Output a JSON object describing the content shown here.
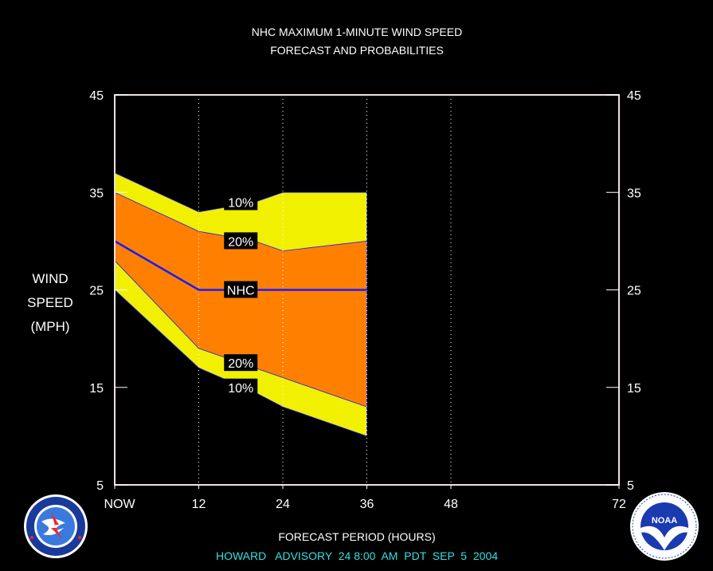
{
  "chart_data": {
    "type": "area",
    "title_lines": [
      "NHC MAXIMUM 1-MINUTE WIND SPEED",
      "FORECAST AND PROBABILITIES"
    ],
    "ylabel_lines": [
      "WIND",
      "SPEED",
      "(MPH)"
    ],
    "xlabel": "FORECAST PERIOD (HOURS)",
    "advisory": "HOWARD   ADVISORY  24 8:00  AM  PDT  SEP  5  2004",
    "ylim": [
      5,
      45
    ],
    "y_ticks": [
      5,
      15,
      25,
      35,
      45
    ],
    "xlim": [
      0,
      72
    ],
    "x_ticks": [
      {
        "value": 0,
        "label": "NOW"
      },
      {
        "value": 12,
        "label": "12"
      },
      {
        "value": 24,
        "label": "24"
      },
      {
        "value": 36,
        "label": "36"
      },
      {
        "value": 48,
        "label": "48"
      },
      {
        "value": 72,
        "label": "72"
      }
    ],
    "grid": {
      "x_dotted": [
        12,
        24,
        36,
        48
      ]
    },
    "x": [
      0,
      12,
      20,
      24,
      36
    ],
    "series": [
      {
        "name": "10%",
        "upper": [
          37,
          33,
          34,
          35,
          35
        ],
        "lower": [
          25,
          17,
          14.5,
          13,
          10
        ],
        "color": "#f0f000"
      },
      {
        "name": "20%",
        "upper": [
          35,
          31,
          30,
          29,
          30
        ],
        "lower": [
          28,
          19,
          17,
          16,
          13
        ],
        "color": "#ff8000"
      },
      {
        "name": "NHC",
        "values": [
          30,
          25,
          25,
          25,
          25
        ],
        "color": "#1a1aff"
      }
    ],
    "labels": [
      {
        "text": "10%",
        "x": 18,
        "y": 34
      },
      {
        "text": "20%",
        "x": 18,
        "y": 30
      },
      {
        "text": "NHC",
        "x": 18,
        "y": 25
      },
      {
        "text": "20%",
        "x": 18,
        "y": 17.5
      },
      {
        "text": "10%",
        "x": 18,
        "y": 15
      }
    ],
    "colors": {
      "background": "#000000",
      "frame": "#f0e0e0",
      "text": "#ffffff",
      "advisory": "#33e0e0"
    }
  },
  "logos": {
    "left": {
      "icon": "nws-logo-icon",
      "text": "NATIONAL WEATHER SERVICE"
    },
    "right": {
      "icon": "noaa-logo-icon",
      "text": "NOAA"
    }
  }
}
